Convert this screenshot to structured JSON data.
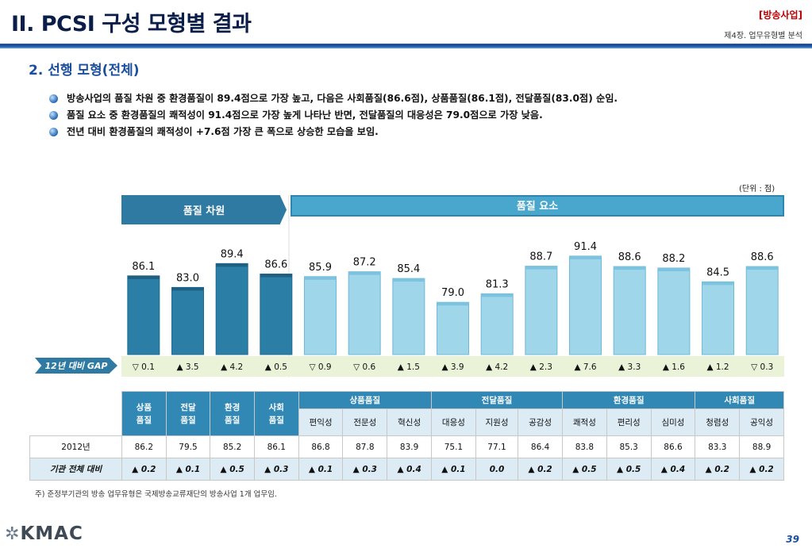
{
  "header": {
    "title": "II. PCSI 구성 모형별 결과",
    "category": "[방송사업]",
    "chapter": "제4장. 업무유형별 분석"
  },
  "section": {
    "title": "2. 선행 모형(전체)"
  },
  "bullets": [
    "방송사업의 품질 차원 중 환경품질이 89.4점으로 가장 높고, 다음은 사회품질(86.6점), 상품품질(86.1점), 전달품질(83.0점) 순임.",
    "품질 요소 중 환경품질의 쾌적성이 91.4점으로 가장 높게 나타난 반면, 전달품질의 대응성은 79.0점으로 가장 낮음.",
    "전년 대비 환경품질의 쾌적성이 +7.6점 가장 큰 폭으로 상승한 모습을 보임."
  ],
  "unit": "(단위 : 점)",
  "groups": {
    "dimension": "품질 차원",
    "element": "품질 요소"
  },
  "gap_label": "12년 대비 GAP",
  "chart_data": {
    "type": "bar",
    "categories": [
      "상품품질",
      "전달품질",
      "환경품질",
      "사회품질",
      "편익성",
      "전문성",
      "혁신성",
      "대응성",
      "지원성",
      "공감성",
      "쾌적성",
      "편리성",
      "심미성",
      "청렴성",
      "공익성"
    ],
    "values": [
      86.1,
      83.0,
      89.4,
      86.6,
      85.9,
      87.2,
      85.4,
      79.0,
      81.3,
      88.7,
      91.4,
      88.6,
      88.2,
      84.5,
      88.6
    ],
    "value_labels": [
      "86.1",
      "83.0",
      "89.4",
      "86.6",
      "85.9",
      "87.2",
      "85.4",
      "79.0",
      "81.3",
      "88.7",
      "91.4",
      "88.6",
      "88.2",
      "84.5",
      "88.6"
    ],
    "gap": [
      "▽ 0.1",
      "▲ 3.5",
      "▲ 4.2",
      "▲ 0.5",
      "▽ 0.9",
      "▽ 0.6",
      "▲ 1.5",
      "▲ 3.9",
      "▲ 4.2",
      "▲ 2.3",
      "▲ 7.6",
      "▲ 3.3",
      "▲ 1.6",
      "▲ 1.2",
      "▽ 0.3"
    ],
    "ylim": [
      65,
      95
    ],
    "colors": {
      "dimension": "#2b7fa6",
      "element": "#9fd6ea"
    }
  },
  "table": {
    "dimension_headers": [
      "상품\n품질",
      "전달\n품질",
      "환경\n품질",
      "사회\n품질"
    ],
    "element_groups": [
      "상품품질",
      "전달품질",
      "환경품질",
      "사회품질"
    ],
    "element_headers": [
      "편익성",
      "전문성",
      "혁신성",
      "대응성",
      "지원성",
      "공감성",
      "쾌적성",
      "편리성",
      "심미성",
      "청렴성",
      "공익성"
    ],
    "row2012_label": "2012년",
    "row2012": [
      "86.2",
      "79.5",
      "85.2",
      "86.1",
      "86.8",
      "87.8",
      "83.9",
      "75.1",
      "77.1",
      "86.4",
      "83.8",
      "85.3",
      "86.6",
      "83.3",
      "88.9"
    ],
    "rowcmp_label": "기관 전체 대비",
    "rowcmp": [
      "▲ 0.2",
      "▲ 0.1",
      "▲ 0.5",
      "▲ 0.3",
      "▲ 0.1",
      "▲ 0.3",
      "▲ 0.4",
      "▲ 0.1",
      "0.0",
      "▲ 0.2",
      "▲ 0.5",
      "▲ 0.5",
      "▲ 0.4",
      "▲ 0.2",
      "▲ 0.2"
    ]
  },
  "note": "주) 준정부기관의 방송 업무유형은 국제방송교류재단의 방송사업 1개 업무임.",
  "footer": {
    "logo": "KMAC",
    "page": "39"
  }
}
